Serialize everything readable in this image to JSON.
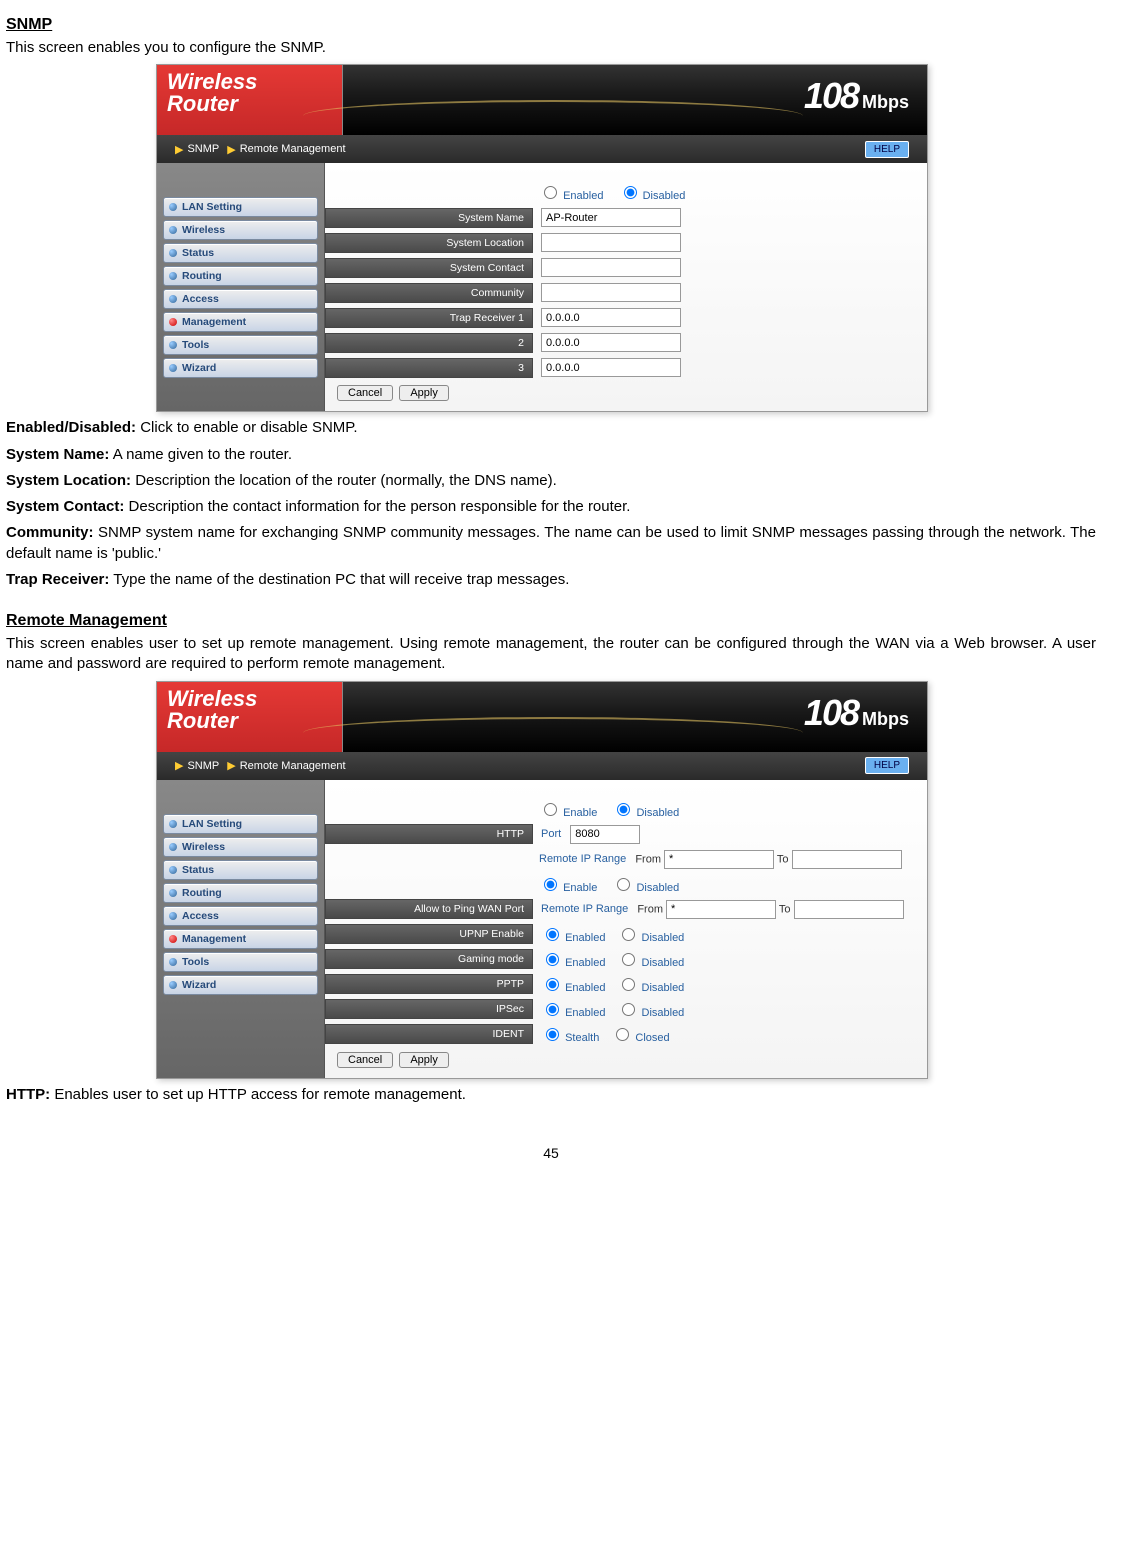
{
  "section1": {
    "heading": "SNMP",
    "intro": "This screen enables you to configure the SNMP.",
    "after": [
      {
        "b": "Enabled/Disabled:",
        "t": " Click to enable or disable SNMP."
      },
      {
        "b": "System Name:",
        "t": " A name given to the router."
      },
      {
        "b": "System Location:",
        "t": " Description the location of the router (normally, the DNS name)."
      },
      {
        "b": "System Contact:",
        "t": " Description the contact information for the person responsible for the router."
      },
      {
        "b": "Community:",
        "t": " SNMP system name for exchanging SNMP community messages. The name can be used to limit SNMP messages passing through the network. The default name is 'public.'"
      },
      {
        "b": "Trap Receiver:",
        "t": " Type the name of the destination PC that will receive trap messages."
      }
    ]
  },
  "section2": {
    "heading": "Remote Management",
    "intro": "This screen enables user to set up remote management. Using remote management, the router can be configured through the WAN via a Web browser. A user name and password are required to perform remote management.",
    "after": [
      {
        "b": "HTTP:",
        "t": " Enables user to set up HTTP access for remote management."
      }
    ]
  },
  "router_common": {
    "brand1": "Wireless",
    "brand2": "Router",
    "mbps_num": "108",
    "mbps_unit": "Mbps",
    "tab1": "SNMP",
    "tab2": "Remote Management",
    "help": "HELP",
    "side": [
      "LAN Setting",
      "Wireless",
      "Status",
      "Routing",
      "Access",
      "Management",
      "Tools",
      "Wizard"
    ],
    "cancel": "Cancel",
    "apply": "Apply"
  },
  "snmp": {
    "enabled_label": "Enabled",
    "disabled_label": "Disabled",
    "enabled_value": "Disabled",
    "rows": {
      "system_name": {
        "label": "System Name",
        "value": "AP-Router"
      },
      "system_location": {
        "label": "System Location",
        "value": ""
      },
      "system_contact": {
        "label": "System Contact",
        "value": ""
      },
      "community": {
        "label": "Community",
        "value": ""
      },
      "trap1": {
        "label": "Trap Receiver 1",
        "value": "0.0.0.0"
      },
      "trap2": {
        "label": "2",
        "value": "0.0.0.0"
      },
      "trap3": {
        "label": "3",
        "value": "0.0.0.0"
      }
    }
  },
  "remote": {
    "http_label": "HTTP",
    "enable": "Enable",
    "enabled": "Enabled",
    "disabled": "Disabled",
    "stealth": "Stealth",
    "closed": "Closed",
    "port_label": "Port",
    "port_value": "8080",
    "remote_ip": "Remote IP Range",
    "from": "From",
    "to": "To",
    "star": "*",
    "ping_label": "Allow to Ping WAN Port",
    "upnp": "UPNP Enable",
    "gaming": "Gaming mode",
    "pptp": "PPTP",
    "ipsec": "IPSec",
    "ident": "IDENT"
  },
  "page": "45",
  "colors": {
    "banner_red": "#d32f2f",
    "banner_dark": "#222",
    "tab_bg": "#333",
    "side_bg": "#777",
    "btn_grad_top": "#eee",
    "btn_grad_bot": "#c8d4e6",
    "link_blue": "#2860a0"
  }
}
